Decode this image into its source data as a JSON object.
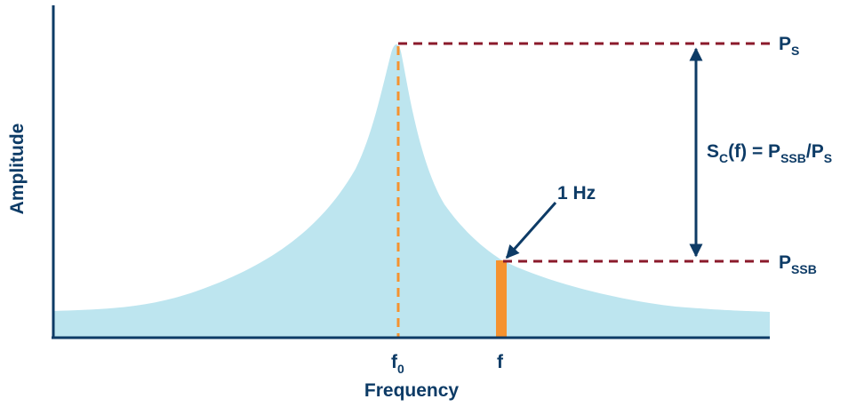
{
  "colors": {
    "axis": "#0d3b66",
    "curve_fill": "#bde5ef",
    "dashed_level": "#8b1a2b",
    "center_marker": "#f5922f",
    "bandwidth_bar": "#f5922f",
    "arrow": "#0d3b66"
  },
  "labels": {
    "y_axis": "Amplitude",
    "x_axis": "Frequency",
    "f0_main": "f",
    "f0_sub": "0",
    "f": "f",
    "ps_main": "P",
    "ps_sub": "S",
    "pssb_main": "P",
    "pssb_sub": "SSB",
    "eq_sc": "S",
    "eq_c": "C",
    "eq_mid": "(f) = P",
    "eq_ssb": "SSB",
    "eq_slash": "/P",
    "eq_s": "S",
    "bandwidth": "1 Hz"
  }
}
